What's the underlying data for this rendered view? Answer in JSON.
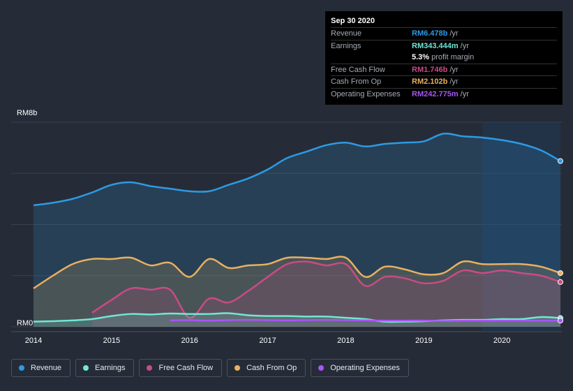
{
  "tooltip": {
    "date": "Sep 30 2020",
    "rows": [
      {
        "label": "Revenue",
        "value": "RM6.478b",
        "unit": "/yr",
        "color": "#2d9ae5"
      },
      {
        "label": "Earnings",
        "value": "RM343.444m",
        "unit": "/yr",
        "color": "#71e7d6"
      },
      {
        "label": "",
        "value": "5.3%",
        "unit": "profit margin",
        "color": "#ffffff"
      },
      {
        "label": "Free Cash Flow",
        "value": "RM1.746b",
        "unit": "/yr",
        "color": "#c94b85"
      },
      {
        "label": "Cash From Op",
        "value": "RM2.102b",
        "unit": "/yr",
        "color": "#e8b061"
      },
      {
        "label": "Operating Expenses",
        "value": "RM242.775m",
        "unit": "/yr",
        "color": "#a855f7"
      }
    ]
  },
  "chart_data": {
    "type": "area",
    "ylabel_top": "RM8b",
    "ylabel_bottom": "RM0",
    "ylim": [
      0,
      8
    ],
    "xlim": [
      2014,
      2020.75
    ],
    "x_ticks": [
      {
        "x": 2014,
        "label": "2014"
      },
      {
        "x": 2015,
        "label": "2015"
      },
      {
        "x": 2016,
        "label": "2016"
      },
      {
        "x": 2017,
        "label": "2017"
      },
      {
        "x": 2018,
        "label": "2018"
      },
      {
        "x": 2019,
        "label": "2019"
      },
      {
        "x": 2020,
        "label": "2020"
      }
    ],
    "forecast_start": 2019.75,
    "series": [
      {
        "name": "Revenue",
        "color": "#2d9ae5",
        "fill": true,
        "x": [
          2014,
          2014.25,
          2014.5,
          2014.75,
          2015,
          2015.25,
          2015.5,
          2015.75,
          2016,
          2016.25,
          2016.5,
          2016.75,
          2017,
          2017.25,
          2017.5,
          2017.75,
          2018,
          2018.25,
          2018.5,
          2018.75,
          2019,
          2019.25,
          2019.5,
          2019.75,
          2020,
          2020.25,
          2020.5,
          2020.75
        ],
        "values": [
          4.75,
          4.85,
          5.0,
          5.25,
          5.55,
          5.65,
          5.5,
          5.4,
          5.3,
          5.3,
          5.55,
          5.8,
          6.15,
          6.6,
          6.85,
          7.1,
          7.2,
          7.05,
          7.15,
          7.2,
          7.25,
          7.55,
          7.45,
          7.4,
          7.3,
          7.15,
          6.9,
          6.48
        ]
      },
      {
        "name": "Cash From Op",
        "color": "#e8b061",
        "fill": true,
        "x": [
          2014,
          2014.25,
          2014.5,
          2014.75,
          2015,
          2015.25,
          2015.5,
          2015.75,
          2016,
          2016.25,
          2016.5,
          2016.75,
          2017,
          2017.25,
          2017.5,
          2017.75,
          2018,
          2018.25,
          2018.5,
          2018.75,
          2019,
          2019.25,
          2019.5,
          2019.75,
          2020,
          2020.25,
          2020.5,
          2020.75
        ],
        "values": [
          1.5,
          2.0,
          2.45,
          2.65,
          2.65,
          2.7,
          2.4,
          2.5,
          1.95,
          2.65,
          2.3,
          2.4,
          2.45,
          2.7,
          2.7,
          2.65,
          2.7,
          1.95,
          2.35,
          2.25,
          2.05,
          2.1,
          2.55,
          2.45,
          2.45,
          2.45,
          2.35,
          2.1
        ]
      },
      {
        "name": "Free Cash Flow",
        "color": "#c94b85",
        "fill": true,
        "x": [
          2014.75,
          2015,
          2015.25,
          2015.5,
          2015.75,
          2016,
          2016.25,
          2016.5,
          2016.75,
          2017,
          2017.25,
          2017.5,
          2017.75,
          2018,
          2018.25,
          2018.5,
          2018.75,
          2019,
          2019.25,
          2019.5,
          2019.75,
          2020,
          2020.25,
          2020.5,
          2020.75
        ],
        "values": [
          0.55,
          1.05,
          1.5,
          1.45,
          1.45,
          0.35,
          1.1,
          0.95,
          1.4,
          1.95,
          2.45,
          2.55,
          2.4,
          2.45,
          1.6,
          1.95,
          1.9,
          1.7,
          1.8,
          2.2,
          2.1,
          2.2,
          2.1,
          2.0,
          1.75
        ]
      },
      {
        "name": "Earnings",
        "color": "#71e7d6",
        "fill": true,
        "x": [
          2014,
          2014.25,
          2014.5,
          2014.75,
          2015,
          2015.25,
          2015.5,
          2015.75,
          2016,
          2016.25,
          2016.5,
          2016.75,
          2017,
          2017.25,
          2017.5,
          2017.75,
          2018,
          2018.25,
          2018.5,
          2018.75,
          2019,
          2019.25,
          2019.5,
          2019.75,
          2020,
          2020.25,
          2020.5,
          2020.75
        ],
        "values": [
          0.2,
          0.22,
          0.25,
          0.3,
          0.42,
          0.5,
          0.48,
          0.52,
          0.5,
          0.5,
          0.53,
          0.45,
          0.42,
          0.42,
          0.4,
          0.4,
          0.35,
          0.3,
          0.2,
          0.2,
          0.22,
          0.25,
          0.27,
          0.27,
          0.3,
          0.3,
          0.38,
          0.34
        ]
      },
      {
        "name": "Operating Expenses",
        "color": "#a855f7",
        "fill": false,
        "x": [
          2015.75,
          2016,
          2016.25,
          2016.5,
          2016.75,
          2017,
          2017.25,
          2017.5,
          2017.75,
          2018,
          2018.25,
          2018.5,
          2018.75,
          2019,
          2019.25,
          2019.5,
          2019.75,
          2020,
          2020.25,
          2020.5,
          2020.75
        ],
        "values": [
          0.25,
          0.26,
          0.24,
          0.26,
          0.27,
          0.26,
          0.25,
          0.26,
          0.27,
          0.26,
          0.25,
          0.24,
          0.24,
          0.24,
          0.23,
          0.24,
          0.24,
          0.24,
          0.24,
          0.24,
          0.24
        ]
      }
    ],
    "legend": [
      "Revenue",
      "Earnings",
      "Free Cash Flow",
      "Cash From Op",
      "Operating Expenses"
    ],
    "grid": true,
    "legend_placement": "bottom"
  }
}
